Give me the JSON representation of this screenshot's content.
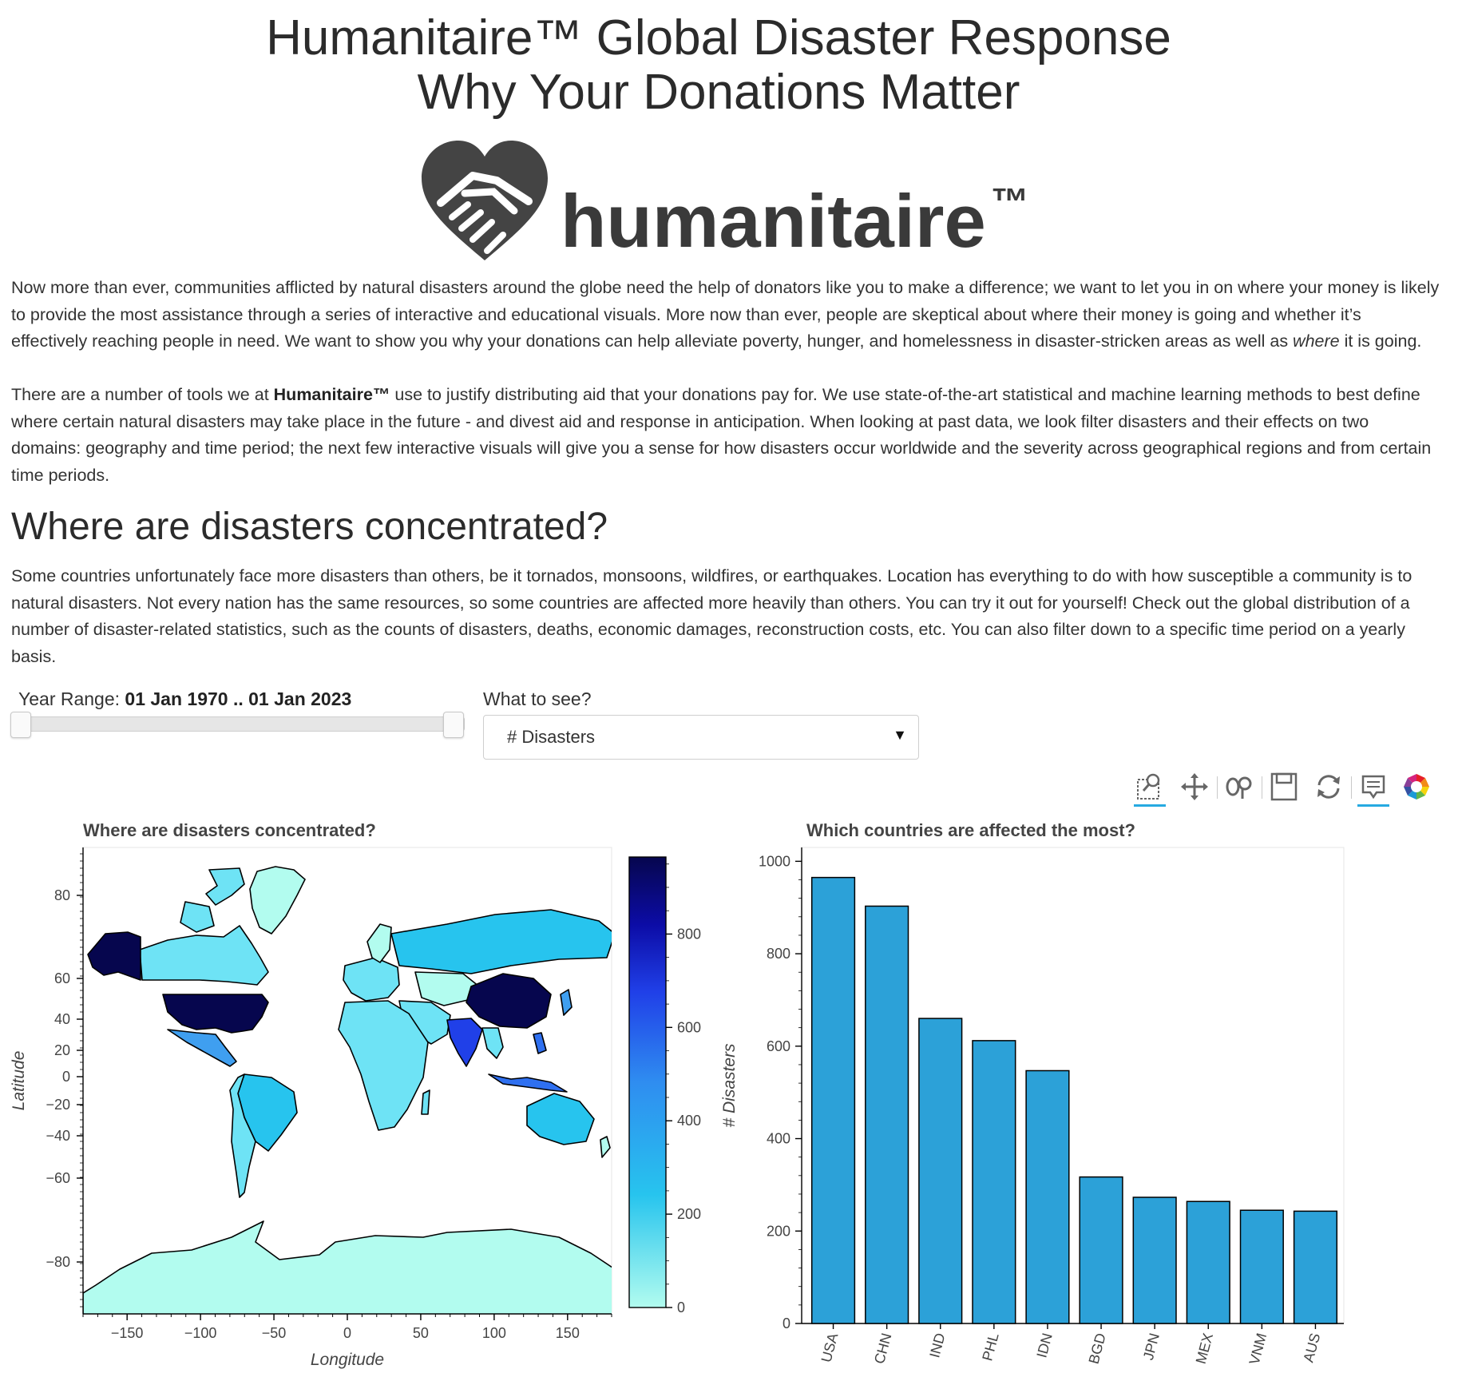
{
  "header": {
    "title_line1": "Humanitaire™ Global Disaster Response",
    "title_line2": "Why Your Donations Matter"
  },
  "logo": {
    "word": "humanitaire",
    "tm": "™"
  },
  "intro": {
    "p1": "Now more than ever, communities afflicted by natural disasters around the globe need the help of donators like you to make a difference; we want to let you in on where your money is likely to provide the most assistance through a series of interactive and educational visuals. More now than ever, people are skeptical about where their money is going and whether it’s effectively reaching people in need. We want to show you why your donations can help alleviate poverty, hunger, and homelessness in disaster-stricken areas as well as ",
    "p1_emph": "where",
    "p1_end": " it is going.",
    "p2_start": "There are a number of tools we at ",
    "p2_bold": "Humanitaire™",
    "p2_rest": " use to justify distributing aid that your donations pay for. We use state-of-the-art statistical and machine learning methods to best define where certain natural disasters may take place in the future - and divest aid and response in anticipation. When looking at past data, we look filter disasters and their effects on two domains: geography and time period; the next few interactive visuals will give you a sense for how disasters occur worldwide and the severity across geographical regions and from certain time periods."
  },
  "section": {
    "title": "Where are disasters concentrated?",
    "body": "Some countries unfortunately face more disasters than others, be it tornados, monsoons, wildfires, or earthquakes. Location has everything to do with how susceptible a community is to natural disasters. Not every nation has the same resources, so some countries are affected more heavily than others. You can try it out for yourself! Check out the global distribution of a number of disaster-related statistics, such as the counts of disasters, deaths, economic damages, reconstruction costs, etc. You can also filter down to a specific time period on a yearly basis."
  },
  "controls": {
    "year_label": "Year Range: ",
    "year_value": "01 Jan 1970 .. 01 Jan 2023",
    "year_start_fraction": 0.0,
    "year_end_fraction": 1.0,
    "metric_label": "What to see?",
    "metric_value": "# Disasters",
    "metric_arrow": "▼"
  },
  "toolbar": {
    "icons": [
      "box-zoom-icon",
      "pan-icon",
      "wheel-zoom-icon",
      "save-icon",
      "reset-icon",
      "hover-icon",
      "bokeh-logo-icon"
    ]
  },
  "map": {
    "title": "Where are disasters concentrated?",
    "xlabel": "Longitude",
    "ylabel": "Latitude",
    "xticks": [
      "−150",
      "−100",
      "−50",
      "0",
      "50",
      "100",
      "150"
    ],
    "yticks": [
      "80",
      "60",
      "40",
      "20",
      "0",
      "−20",
      "−40",
      "−60",
      "−80"
    ],
    "colorbar_ticks": [
      "800",
      "600",
      "400",
      "200",
      "0"
    ],
    "colorbar_range": [
      0,
      965
    ],
    "colors": {
      "low": "#b2fcef",
      "mid": "#27c4ee",
      "high": "#2040e8",
      "max": "#06064e",
      "outline": "#000000"
    }
  },
  "chart_data": {
    "type": "bar",
    "title": "Which countries are affected the most?",
    "xlabel": "",
    "ylabel": "# Disasters",
    "categories": [
      "USA",
      "CHN",
      "IND",
      "PHL",
      "IDN",
      "BGD",
      "JPN",
      "MEX",
      "VNM",
      "AUS"
    ],
    "values": [
      965,
      903,
      660,
      612,
      547,
      317,
      273,
      264,
      245,
      243
    ],
    "ylim": [
      0,
      1030
    ],
    "yticks": [
      "1000",
      "800",
      "600",
      "400",
      "200",
      "0"
    ],
    "bar_color": "#2ca1d8"
  }
}
